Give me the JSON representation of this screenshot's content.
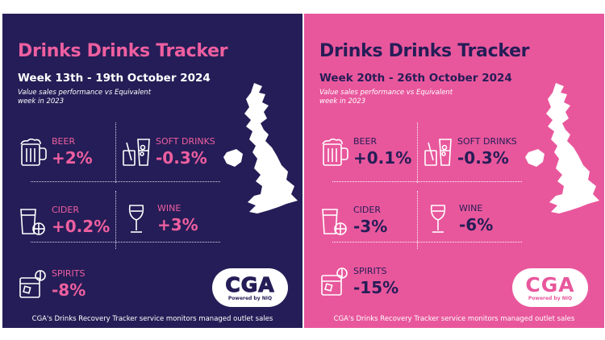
{
  "colors": {
    "navy": "#251d57",
    "pink": "#e8579c",
    "white": "#ffffff"
  },
  "panels": [
    {
      "title": "Drinks Drinks Tracker",
      "week": "Week 13th - 19th October 2024",
      "subtitle": "Value sales performance vs Equivalent week in 2023",
      "categories": {
        "beer": {
          "label": "BEER",
          "value": "+2%",
          "icon": "beer-mug-icon"
        },
        "soft_drinks": {
          "label": "SOFT DRINKS",
          "value": "-0.3%",
          "icon": "soft-drink-glass-icon"
        },
        "cider": {
          "label": "CIDER",
          "value": "+0.2%",
          "icon": "cider-glass-icon"
        },
        "wine": {
          "label": "WINE",
          "value": "+3%",
          "icon": "wine-glass-icon"
        },
        "spirits": {
          "label": "SPIRITS",
          "value": "-8%",
          "icon": "spirits-tumbler-icon"
        }
      },
      "logo": {
        "mark": "CGA",
        "sub": "Powered by NIQ"
      },
      "footer": "CGA's Drinks Recovery Tracker service monitors managed outlet sales"
    },
    {
      "title": "Drinks Drinks Tracker",
      "week": "Week 20th - 26th October 2024",
      "subtitle": "Value sales performance vs Equivalent week in 2023",
      "categories": {
        "beer": {
          "label": "BEER",
          "value": "+0.1%",
          "icon": "beer-mug-icon"
        },
        "soft_drinks": {
          "label": "SOFT DRINKS",
          "value": "-0.3%",
          "icon": "soft-drink-glass-icon"
        },
        "cider": {
          "label": "CIDER",
          "value": "-3%",
          "icon": "cider-glass-icon"
        },
        "wine": {
          "label": "WINE",
          "value": "-6%",
          "icon": "wine-glass-icon"
        },
        "spirits": {
          "label": "SPIRITS",
          "value": "-15%",
          "icon": "spirits-tumbler-icon"
        }
      },
      "logo": {
        "mark": "CGA",
        "sub": "Powered by NIQ"
      },
      "footer": "CGA's Drinks Recovery Tracker service monitors managed outlet sales"
    }
  ]
}
